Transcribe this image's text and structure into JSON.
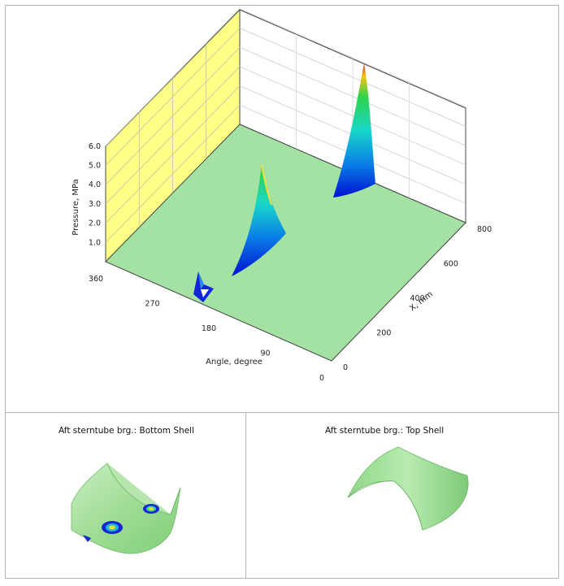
{
  "chart_data": [
    {
      "type": "surface3d",
      "title": "",
      "zlabel": "Pressure, MPa",
      "xlabel": "Angle, degree",
      "ylabel": "X, mm",
      "z_ticks": [
        "1.0",
        "2.0",
        "3.0",
        "4.0",
        "5.0",
        "6.0"
      ],
      "angle_ticks": [
        "0",
        "90",
        "180",
        "270",
        "360"
      ],
      "x_ticks": [
        "0",
        "200",
        "400",
        "600",
        "800"
      ],
      "zlim": [
        0,
        6
      ],
      "angle_range": [
        0,
        360
      ],
      "x_range": [
        0,
        800
      ],
      "peaks": [
        {
          "angle": 265,
          "x": 40,
          "pressure": 0.8
        },
        {
          "angle": 225,
          "x": 300,
          "pressure": 5.0
        },
        {
          "angle": 185,
          "x": 700,
          "pressure": 6.2
        }
      ],
      "colors": {
        "floor": "#a3e2a3",
        "back_wall": "#ffffff",
        "left_wall": "#ffff88"
      }
    },
    {
      "type": "surface3d",
      "title": "Aft sterntube brg.: Bottom Shell"
    },
    {
      "type": "surface3d",
      "title": "Aft sterntube brg.: Top Shell"
    }
  ]
}
